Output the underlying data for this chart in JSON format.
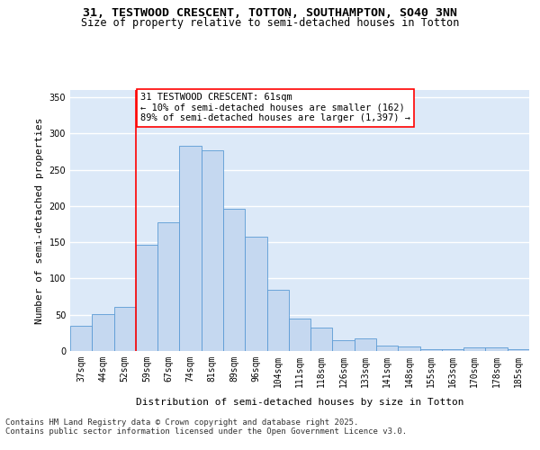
{
  "title_line1": "31, TESTWOOD CRESCENT, TOTTON, SOUTHAMPTON, SO40 3NN",
  "title_line2": "Size of property relative to semi-detached houses in Totton",
  "xlabel": "Distribution of semi-detached houses by size in Totton",
  "ylabel": "Number of semi-detached properties",
  "categories": [
    "37sqm",
    "44sqm",
    "52sqm",
    "59sqm",
    "67sqm",
    "74sqm",
    "81sqm",
    "89sqm",
    "96sqm",
    "104sqm",
    "111sqm",
    "118sqm",
    "126sqm",
    "133sqm",
    "141sqm",
    "148sqm",
    "155sqm",
    "163sqm",
    "170sqm",
    "178sqm",
    "185sqm"
  ],
  "bar_heights": [
    35,
    51,
    61,
    147,
    178,
    283,
    277,
    196,
    158,
    84,
    45,
    32,
    15,
    17,
    8,
    6,
    3,
    2,
    5,
    5,
    2
  ],
  "bar_color": "#c5d8f0",
  "bar_edge_color": "#5b9bd5",
  "vline_position": 2.5,
  "vline_color": "red",
  "annotation_text": "31 TESTWOOD CRESCENT: 61sqm\n← 10% of semi-detached houses are smaller (162)\n89% of semi-detached houses are larger (1,397) →",
  "annotation_box_color": "white",
  "annotation_box_edge_color": "red",
  "ylim": [
    0,
    360
  ],
  "yticks": [
    0,
    50,
    100,
    150,
    200,
    250,
    300,
    350
  ],
  "background_color": "#dce9f8",
  "grid_color": "#ffffff",
  "footer_text": "Contains HM Land Registry data © Crown copyright and database right 2025.\nContains public sector information licensed under the Open Government Licence v3.0.",
  "title_fontsize": 9.5,
  "subtitle_fontsize": 8.5,
  "axis_label_fontsize": 8,
  "tick_fontsize": 7,
  "annotation_fontsize": 7.5,
  "footer_fontsize": 6.5
}
